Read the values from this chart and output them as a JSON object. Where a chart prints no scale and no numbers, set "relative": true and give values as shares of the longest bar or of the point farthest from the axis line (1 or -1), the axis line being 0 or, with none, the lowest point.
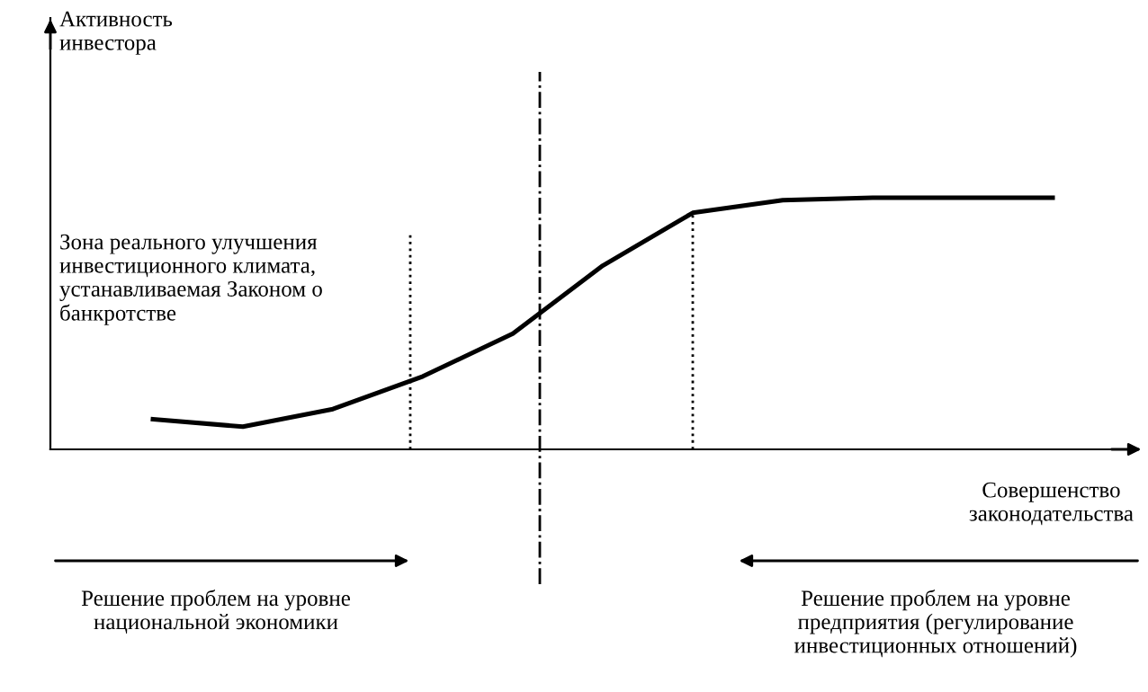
{
  "chart_data": {
    "type": "line",
    "relative": true,
    "xlabel": "Совершенство\nзаконодательства",
    "categories": [
      null,
      null,
      null,
      null,
      null,
      null,
      null,
      null,
      null,
      null,
      null
    ],
    "series": [
      {
        "color": "#000000",
        "values": [
          0.12,
          0.09,
          0.16,
          0.29,
          0.46,
          0.73,
          0.94,
          0.99,
          1,
          1,
          1
        ]
      }
    ],
    "annotations": [
      "Активность\nинвестора",
      "Зона реального улучшения\nинвестиционного климата,\nустанавливаемая Законом о\nбанкротстве",
      "Решение проблем на уровне\nнациональной экономики",
      "Решение проблем на уровне\nпредприятия (регулирование\nинвестиционных отношений)"
    ],
    "legend": false,
    "marker": "none",
    "line_style": "solid"
  }
}
